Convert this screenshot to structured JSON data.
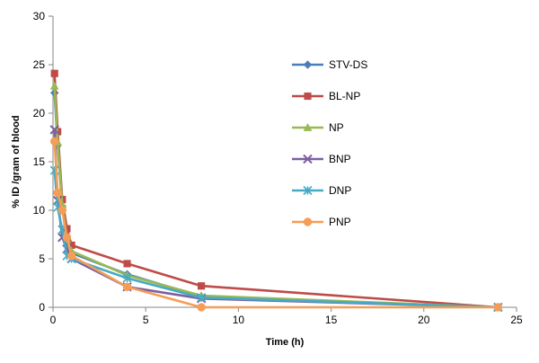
{
  "chart_data": {
    "type": "line",
    "xlabel": "Time (h)",
    "ylabel": "% ID /gram of blood",
    "xlim": [
      0,
      25
    ],
    "ylim": [
      0,
      30
    ],
    "xticks": [
      "0",
      "5",
      "10",
      "15",
      "20",
      "25"
    ],
    "yticks": [
      "0",
      "5",
      "10",
      "15",
      "20",
      "25",
      "30"
    ],
    "grid": false,
    "legend_position": "right",
    "series": [
      {
        "name": "STV-DS",
        "color": "#4a7ebb",
        "marker": "diamond",
        "x": [
          0.083,
          0.25,
          0.5,
          0.75,
          1,
          4,
          8,
          24
        ],
        "y": [
          22.1,
          16.7,
          10.4,
          6.7,
          5.6,
          3.4,
          1.1,
          0
        ]
      },
      {
        "name": "BL-NP",
        "color": "#be4b48",
        "marker": "square",
        "x": [
          0.083,
          0.25,
          0.5,
          0.75,
          1,
          4,
          8,
          24
        ],
        "y": [
          24.1,
          18.1,
          11.1,
          8.1,
          6.4,
          4.5,
          2.2,
          0
        ]
      },
      {
        "name": "NP",
        "color": "#98b954",
        "marker": "triangle",
        "x": [
          0.083,
          0.25,
          0.5,
          0.75,
          1,
          4,
          8,
          24
        ],
        "y": [
          22.8,
          17.0,
          10.6,
          7.0,
          5.8,
          3.3,
          1.2,
          0
        ]
      },
      {
        "name": "BNP",
        "color": "#7d60a0",
        "marker": "x",
        "x": [
          0.083,
          0.25,
          0.5,
          0.75,
          1,
          4,
          8,
          24
        ],
        "y": [
          18.3,
          11.0,
          7.2,
          6.0,
          5.0,
          2.1,
          0.9,
          0
        ]
      },
      {
        "name": "DNP",
        "color": "#46aac5",
        "marker": "star",
        "x": [
          0.083,
          0.25,
          0.5,
          0.75,
          1,
          4,
          8,
          24
        ],
        "y": [
          14.1,
          10.3,
          8.0,
          5.3,
          5.0,
          3.0,
          1.0,
          0
        ]
      },
      {
        "name": "PNP",
        "color": "#f59d56",
        "marker": "circle",
        "x": [
          0.083,
          0.25,
          0.5,
          0.75,
          1,
          4,
          8,
          24
        ],
        "y": [
          17.1,
          11.8,
          10.0,
          7.2,
          5.3,
          2.1,
          0,
          0
        ]
      }
    ]
  }
}
